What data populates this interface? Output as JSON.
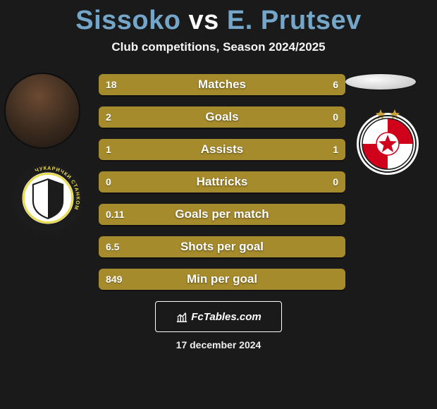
{
  "header": {
    "title_left": "Sissoko",
    "title_vs": "vs",
    "title_right": "E. Prutsev",
    "title_left_color": "#74a6c9",
    "title_vs_color": "#ffffff",
    "title_right_color": "#74a6c9",
    "subtitle": "Club competitions, Season 2024/2025"
  },
  "players": {
    "left_avatar_bg": "radial-gradient(circle at 45% 30%, #6b4a32 0%, #3a2a1e 55%, #1a1410 100%)",
    "right_avatar_bg": "radial-gradient(ellipse at 40% 35%, #fafafa 0%, #d0d0d0 70%, #bfbfbf 100%)"
  },
  "badges": {
    "left": {
      "outer_bg": "#ffffff",
      "ring_outer": "#1c1c1c",
      "ring_inner": "#e9d94c",
      "shield_fill": "#ffffff",
      "shield_stroke": "#1c1c1c",
      "ring_text": "ЧУКАРИЧКИ СТАНКОМ"
    },
    "right": {
      "outer_bg": "#ffffff",
      "stars_color": "#c9a23a",
      "shield_stroke": "#1c1c1c",
      "red": "#d0021b",
      "white": "#ffffff"
    }
  },
  "stats": {
    "row_bg": "#a58b2c",
    "label_color": "#ffffff",
    "rows": [
      {
        "label": "Matches",
        "left": "18",
        "right": "6"
      },
      {
        "label": "Goals",
        "left": "2",
        "right": "0"
      },
      {
        "label": "Assists",
        "left": "1",
        "right": "1"
      },
      {
        "label": "Hattricks",
        "left": "0",
        "right": "0"
      },
      {
        "label": "Goals per match",
        "left": "0.11",
        "right": ""
      },
      {
        "label": "Shots per goal",
        "left": "6.5",
        "right": ""
      },
      {
        "label": "Min per goal",
        "left": "849",
        "right": ""
      }
    ]
  },
  "footer": {
    "site_label": "FcTables.com",
    "date": "17 december 2024"
  },
  "colors": {
    "page_bg": "#1a1a1a",
    "text": "#ffffff"
  }
}
